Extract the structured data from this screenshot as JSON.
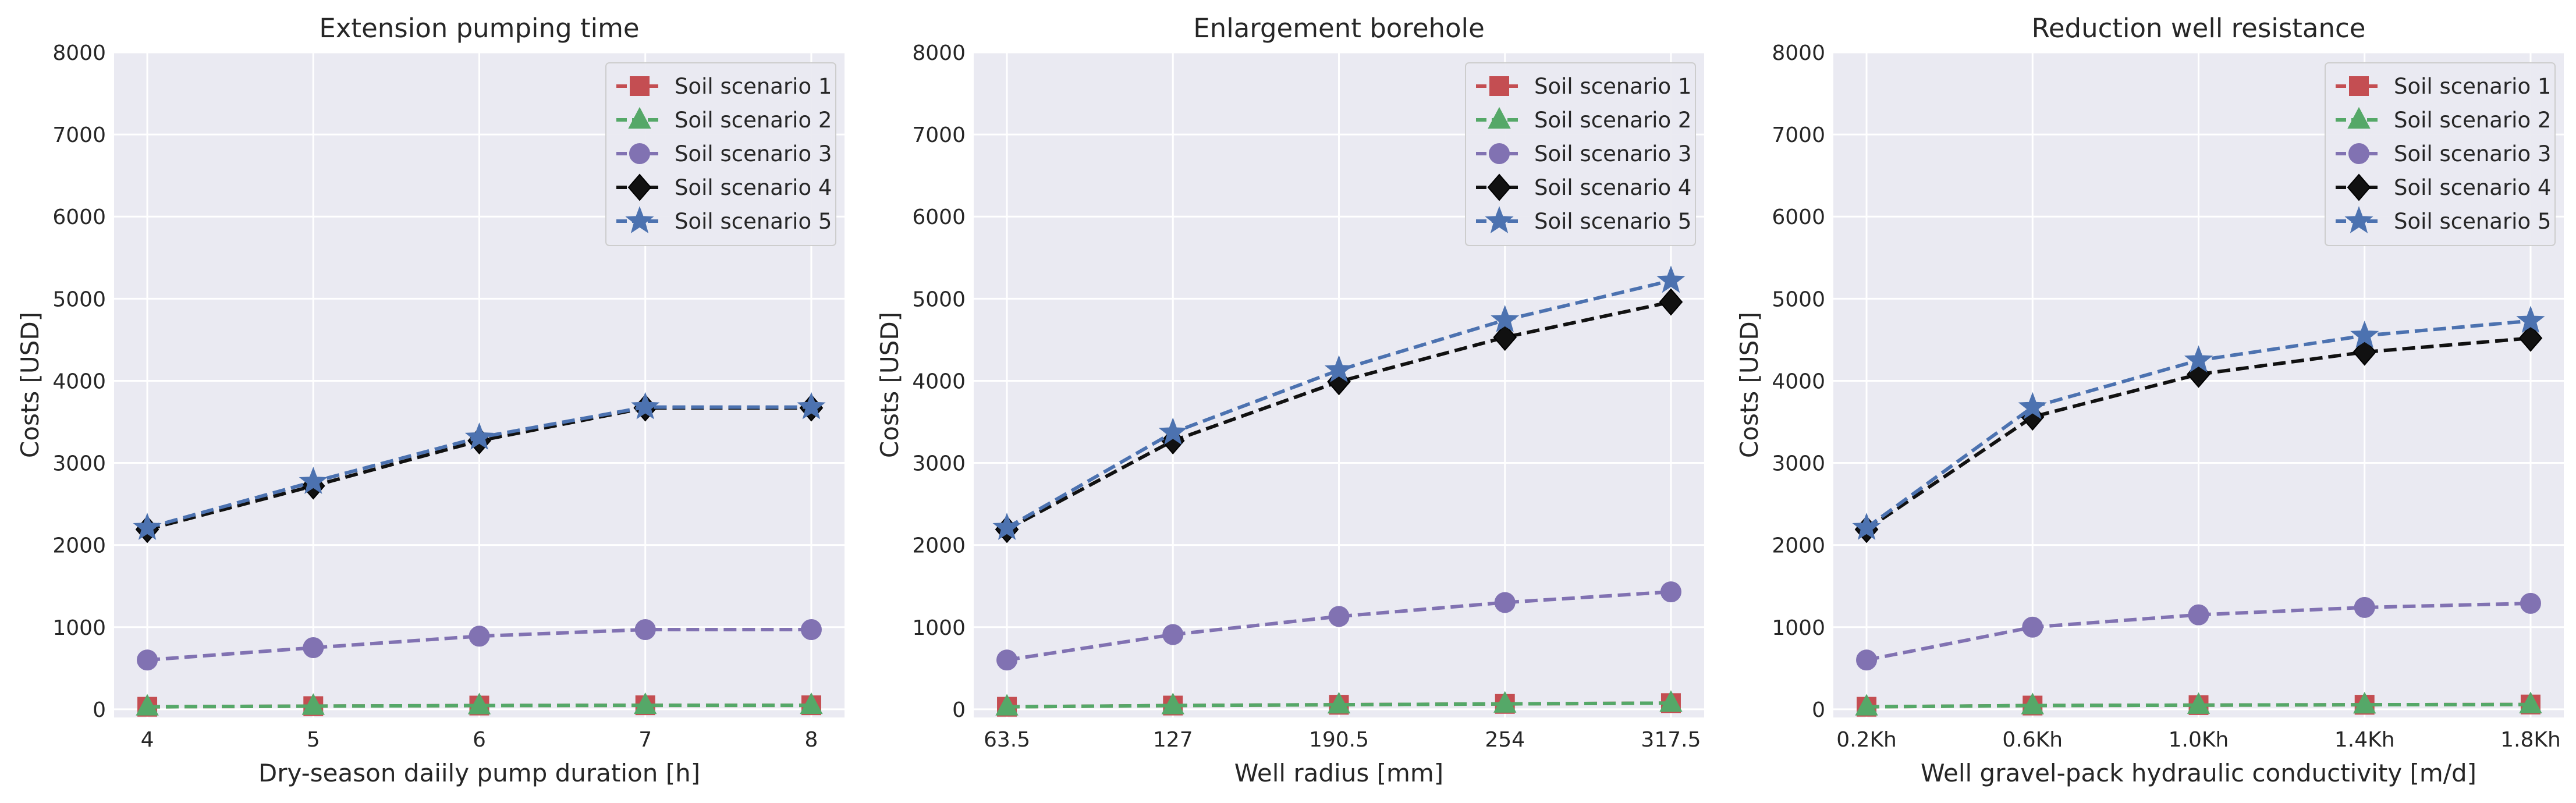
{
  "legend_labels": [
    "Soil scenario 1",
    "Soil scenario 2",
    "Soil scenario 3",
    "Soil scenario 4",
    "Soil scenario 5"
  ],
  "styles": {
    "plot_background": "#EAEAF2",
    "grid_color": "#FFFFFF",
    "series_colors": [
      "#C44E52",
      "#55A868",
      "#8172B2",
      "#111111",
      "#4C72B0"
    ],
    "series_markers": [
      "square",
      "triangle",
      "circle",
      "diamond",
      "star"
    ]
  },
  "chart_data": [
    {
      "type": "line",
      "title": "Extension pumping time",
      "xlabel": "Dry-season daiily pump duration [h]",
      "ylabel": "Costs [USD]",
      "categories": [
        "4",
        "5",
        "6",
        "7",
        "8"
      ],
      "ylim": [
        -100,
        8000
      ],
      "yticks": [
        0,
        1000,
        2000,
        3000,
        4000,
        5000,
        6000,
        7000,
        8000
      ],
      "grid": true,
      "legend_position": "top-right",
      "series": [
        {
          "name": "Soil scenario 1",
          "values": [
            30,
            38,
            45,
            48,
            48
          ]
        },
        {
          "name": "Soil scenario 2",
          "values": [
            30,
            38,
            45,
            48,
            48
          ]
        },
        {
          "name": "Soil scenario 3",
          "values": [
            600,
            750,
            890,
            970,
            970
          ]
        },
        {
          "name": "Soil scenario 4",
          "values": [
            2190,
            2720,
            3270,
            3670,
            3670
          ]
        },
        {
          "name": "Soil scenario 5",
          "values": [
            2210,
            2770,
            3310,
            3680,
            3680
          ]
        }
      ]
    },
    {
      "type": "line",
      "title": "Enlargement borehole",
      "xlabel": "Well radius [mm]",
      "ylabel": "Costs [USD]",
      "categories": [
        "63.5",
        "127",
        "190.5",
        "254",
        "317.5"
      ],
      "ylim": [
        -100,
        8000
      ],
      "yticks": [
        0,
        1000,
        2000,
        3000,
        4000,
        5000,
        6000,
        7000,
        8000
      ],
      "grid": true,
      "legend_position": "top-right",
      "series": [
        {
          "name": "Soil scenario 1",
          "values": [
            30,
            45,
            55,
            65,
            75
          ]
        },
        {
          "name": "Soil scenario 2",
          "values": [
            30,
            45,
            55,
            65,
            75
          ]
        },
        {
          "name": "Soil scenario 3",
          "values": [
            600,
            910,
            1130,
            1300,
            1430
          ]
        },
        {
          "name": "Soil scenario 4",
          "values": [
            2190,
            3270,
            3990,
            4530,
            4960
          ]
        },
        {
          "name": "Soil scenario 5",
          "values": [
            2210,
            3370,
            4130,
            4740,
            5220
          ]
        }
      ]
    },
    {
      "type": "line",
      "title": "Reduction well resistance",
      "xlabel": "Well gravel-pack hydraulic conductivity [m/d]",
      "ylabel": "Costs [USD]",
      "categories": [
        "0.2Kh",
        "0.6Kh",
        "1.0Kh",
        "1.4Kh",
        "1.8Kh"
      ],
      "ylim": [
        -100,
        8000
      ],
      "yticks": [
        0,
        1000,
        2000,
        3000,
        4000,
        5000,
        6000,
        7000,
        8000
      ],
      "grid": true,
      "legend_position": "top-right",
      "series": [
        {
          "name": "Soil scenario 1",
          "values": [
            30,
            45,
            50,
            55,
            58
          ]
        },
        {
          "name": "Soil scenario 2",
          "values": [
            30,
            45,
            50,
            55,
            58
          ]
        },
        {
          "name": "Soil scenario 3",
          "values": [
            600,
            1000,
            1150,
            1240,
            1290
          ]
        },
        {
          "name": "Soil scenario 4",
          "values": [
            2190,
            3560,
            4080,
            4350,
            4520
          ]
        },
        {
          "name": "Soil scenario 5",
          "values": [
            2210,
            3680,
            4250,
            4550,
            4730
          ]
        }
      ]
    }
  ]
}
